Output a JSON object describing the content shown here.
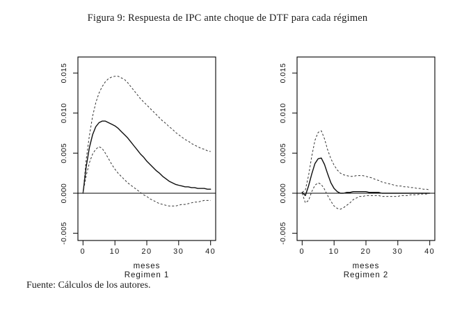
{
  "figure": {
    "caption": "Figura 9: Respuesta de IPC ante choque de DTF para cada régimen",
    "source_note": "Fuente: Cálculos de los autores."
  },
  "colors": {
    "background": "#ffffff",
    "line": "#0d0d0d",
    "band": "#333333",
    "text": "#1b1b1b"
  },
  "chart_data": [
    {
      "type": "line",
      "title": "",
      "xlabel": "meses",
      "sublabel": "Regimen 1",
      "ylabel": "",
      "grid": false,
      "legend": false,
      "zero_line": true,
      "x_ticks": [
        0,
        10,
        20,
        30,
        40
      ],
      "y_ticks": [
        -0.005,
        0.0,
        0.005,
        0.01,
        0.015
      ],
      "xlim": [
        -1.6,
        41.6
      ],
      "ylim": [
        -0.0059,
        0.017
      ],
      "series": [
        {
          "name": "response",
          "style": "solid",
          "points": [
            [
              0,
              0
            ],
            [
              1,
              0.0033
            ],
            [
              2,
              0.0057
            ],
            [
              3,
              0.0073
            ],
            [
              4,
              0.0083
            ],
            [
              5,
              0.0088
            ],
            [
              6,
              0.009
            ],
            [
              7,
              0.009
            ],
            [
              8,
              0.0088
            ],
            [
              9,
              0.0086
            ],
            [
              10,
              0.0084
            ],
            [
              11,
              0.0081
            ],
            [
              12,
              0.0077
            ],
            [
              13,
              0.0073
            ],
            [
              14,
              0.0069
            ],
            [
              15,
              0.0064
            ],
            [
              16,
              0.0059
            ],
            [
              17,
              0.0054
            ],
            [
              18,
              0.0049
            ],
            [
              19,
              0.0045
            ],
            [
              20,
              0.004
            ],
            [
              21,
              0.0036
            ],
            [
              22,
              0.0032
            ],
            [
              23,
              0.0028
            ],
            [
              24,
              0.0025
            ],
            [
              25,
              0.0021
            ],
            [
              26,
              0.0018
            ],
            [
              27,
              0.0015
            ],
            [
              28,
              0.0013
            ],
            [
              29,
              0.0011
            ],
            [
              30,
              0.001
            ],
            [
              31,
              0.0009
            ],
            [
              32,
              0.0008
            ],
            [
              33,
              0.0008
            ],
            [
              34,
              0.0007
            ],
            [
              35,
              0.0007
            ],
            [
              36,
              0.0006
            ],
            [
              37,
              0.0006
            ],
            [
              38,
              0.0006
            ],
            [
              39,
              0.0005
            ],
            [
              40,
              0.0005
            ]
          ]
        },
        {
          "name": "upper-band",
          "style": "dashed",
          "points": [
            [
              0,
              0
            ],
            [
              1,
              0.0042
            ],
            [
              2,
              0.0072
            ],
            [
              3,
              0.0096
            ],
            [
              4,
              0.0113
            ],
            [
              5,
              0.0125
            ],
            [
              6,
              0.0133
            ],
            [
              7,
              0.0139
            ],
            [
              8,
              0.0143
            ],
            [
              9,
              0.0145
            ],
            [
              10,
              0.0146
            ],
            [
              11,
              0.0146
            ],
            [
              12,
              0.0144
            ],
            [
              13,
              0.0142
            ],
            [
              14,
              0.0138
            ],
            [
              15,
              0.0133
            ],
            [
              16,
              0.0128
            ],
            [
              17,
              0.0123
            ],
            [
              18,
              0.0118
            ],
            [
              19,
              0.0114
            ],
            [
              20,
              0.011
            ],
            [
              21,
              0.0106
            ],
            [
              22,
              0.0102
            ],
            [
              23,
              0.0098
            ],
            [
              24,
              0.0094
            ],
            [
              25,
              0.009
            ],
            [
              26,
              0.0087
            ],
            [
              27,
              0.0083
            ],
            [
              28,
              0.008
            ],
            [
              29,
              0.0076
            ],
            [
              30,
              0.0073
            ],
            [
              31,
              0.007
            ],
            [
              32,
              0.0067
            ],
            [
              33,
              0.0065
            ],
            [
              34,
              0.0062
            ],
            [
              35,
              0.006
            ],
            [
              36,
              0.0058
            ],
            [
              37,
              0.0056
            ],
            [
              38,
              0.0055
            ],
            [
              39,
              0.0053
            ],
            [
              40,
              0.0052
            ]
          ]
        },
        {
          "name": "lower-band",
          "style": "dashed",
          "points": [
            [
              0,
              0
            ],
            [
              1,
              0.0022
            ],
            [
              2,
              0.0038
            ],
            [
              3,
              0.0049
            ],
            [
              4,
              0.0055
            ],
            [
              5,
              0.0058
            ],
            [
              6,
              0.0056
            ],
            [
              7,
              0.005
            ],
            [
              8,
              0.0043
            ],
            [
              9,
              0.0036
            ],
            [
              10,
              0.003
            ],
            [
              11,
              0.0025
            ],
            [
              12,
              0.0021
            ],
            [
              13,
              0.0017
            ],
            [
              14,
              0.0013
            ],
            [
              15,
              0.001
            ],
            [
              16,
              0.0007
            ],
            [
              17,
              0.0004
            ],
            [
              18,
              0.0001
            ],
            [
              19,
              -0.0002
            ],
            [
              20,
              -0.0004
            ],
            [
              21,
              -0.0007
            ],
            [
              22,
              -0.0009
            ],
            [
              23,
              -0.0011
            ],
            [
              24,
              -0.0013
            ],
            [
              25,
              -0.0014
            ],
            [
              26,
              -0.0015
            ],
            [
              27,
              -0.0016
            ],
            [
              28,
              -0.0016
            ],
            [
              29,
              -0.0016
            ],
            [
              30,
              -0.0015
            ],
            [
              31,
              -0.0014
            ],
            [
              32,
              -0.0014
            ],
            [
              33,
              -0.0013
            ],
            [
              34,
              -0.0012
            ],
            [
              35,
              -0.0011
            ],
            [
              36,
              -0.0011
            ],
            [
              37,
              -0.001
            ],
            [
              38,
              -0.0009
            ],
            [
              39,
              -0.0009
            ],
            [
              40,
              -0.0009
            ]
          ]
        }
      ]
    },
    {
      "type": "line",
      "title": "",
      "xlabel": "meses",
      "sublabel": "Regimen 2",
      "ylabel": "",
      "grid": false,
      "legend": false,
      "zero_line": true,
      "x_ticks": [
        0,
        10,
        20,
        30,
        40
      ],
      "y_ticks": [
        -0.005,
        0.0,
        0.005,
        0.01,
        0.015
      ],
      "xlim": [
        -1.6,
        41.6
      ],
      "ylim": [
        -0.0059,
        0.017
      ],
      "series": [
        {
          "name": "response",
          "style": "solid",
          "points": [
            [
              0,
              0.0001
            ],
            [
              1,
              -0.0003
            ],
            [
              2,
              0.0009
            ],
            [
              3,
              0.0024
            ],
            [
              4,
              0.0037
            ],
            [
              5,
              0.0043
            ],
            [
              6,
              0.0044
            ],
            [
              7,
              0.0036
            ],
            [
              8,
              0.0024
            ],
            [
              9,
              0.0013
            ],
            [
              10,
              0.0006
            ],
            [
              11,
              0.0002
            ],
            [
              12,
              0
            ],
            [
              13,
              0
            ],
            [
              14,
              0.0001
            ],
            [
              15,
              0.0001
            ],
            [
              16,
              0.0002
            ],
            [
              17,
              0.0002
            ],
            [
              18,
              0.0002
            ],
            [
              19,
              0.0002
            ],
            [
              20,
              0.0002
            ],
            [
              21,
              0.0001
            ],
            [
              22,
              0.0001
            ],
            [
              23,
              0.0001
            ],
            [
              24,
              0.0001
            ],
            [
              25,
              0
            ],
            [
              26,
              0
            ],
            [
              27,
              0
            ],
            [
              28,
              0
            ],
            [
              29,
              0
            ],
            [
              30,
              0
            ],
            [
              32,
              0
            ],
            [
              34,
              0
            ],
            [
              36,
              0
            ],
            [
              38,
              0
            ],
            [
              40,
              0
            ]
          ]
        },
        {
          "name": "upper-band",
          "style": "dashed",
          "points": [
            [
              0,
              0.0001
            ],
            [
              1,
              0.0004
            ],
            [
              2,
              0.0022
            ],
            [
              3,
              0.0046
            ],
            [
              4,
              0.0066
            ],
            [
              5,
              0.0076
            ],
            [
              6,
              0.0078
            ],
            [
              7,
              0.0068
            ],
            [
              8,
              0.0054
            ],
            [
              9,
              0.0043
            ],
            [
              10,
              0.0035
            ],
            [
              11,
              0.0029
            ],
            [
              12,
              0.0025
            ],
            [
              13,
              0.0023
            ],
            [
              14,
              0.0022
            ],
            [
              15,
              0.0021
            ],
            [
              16,
              0.0021
            ],
            [
              17,
              0.0022
            ],
            [
              18,
              0.0022
            ],
            [
              19,
              0.0022
            ],
            [
              20,
              0.0021
            ],
            [
              21,
              0.002
            ],
            [
              22,
              0.0019
            ],
            [
              23,
              0.0017
            ],
            [
              24,
              0.0016
            ],
            [
              25,
              0.0014
            ],
            [
              26,
              0.0013
            ],
            [
              27,
              0.0012
            ],
            [
              28,
              0.0011
            ],
            [
              29,
              0.001
            ],
            [
              30,
              0.0009
            ],
            [
              31,
              0.0009
            ],
            [
              32,
              0.0008
            ],
            [
              33,
              0.0008
            ],
            [
              34,
              0.0007
            ],
            [
              35,
              0.0007
            ],
            [
              36,
              0.0006
            ],
            [
              37,
              0.0006
            ],
            [
              38,
              0.0005
            ],
            [
              39,
              0.0005
            ],
            [
              40,
              0.0004
            ]
          ]
        },
        {
          "name": "lower-band",
          "style": "dashed",
          "points": [
            [
              0,
              0
            ],
            [
              1,
              -0.0012
            ],
            [
              2,
              -0.0009
            ],
            [
              3,
              0.0002
            ],
            [
              4,
              0.001
            ],
            [
              5,
              0.0013
            ],
            [
              6,
              0.0011
            ],
            [
              7,
              0.0005
            ],
            [
              8,
              -0.0003
            ],
            [
              9,
              -0.001
            ],
            [
              10,
              -0.0016
            ],
            [
              11,
              -0.0019
            ],
            [
              12,
              -0.002
            ],
            [
              13,
              -0.0018
            ],
            [
              14,
              -0.0015
            ],
            [
              15,
              -0.0012
            ],
            [
              16,
              -0.0008
            ],
            [
              17,
              -0.0006
            ],
            [
              18,
              -0.0004
            ],
            [
              19,
              -0.0004
            ],
            [
              20,
              -0.0003
            ],
            [
              21,
              -0.0003
            ],
            [
              22,
              -0.0003
            ],
            [
              23,
              -0.0003
            ],
            [
              24,
              -0.0003
            ],
            [
              25,
              -0.0004
            ],
            [
              26,
              -0.0004
            ],
            [
              27,
              -0.0004
            ],
            [
              28,
              -0.0004
            ],
            [
              29,
              -0.0004
            ],
            [
              30,
              -0.0004
            ],
            [
              31,
              -0.0003
            ],
            [
              32,
              -0.0003
            ],
            [
              33,
              -0.0003
            ],
            [
              34,
              -0.0002
            ],
            [
              35,
              -0.0002
            ],
            [
              36,
              -0.0002
            ],
            [
              37,
              -0.0001
            ],
            [
              38,
              -0.0001
            ],
            [
              39,
              -0.0001
            ],
            [
              40,
              0
            ]
          ]
        }
      ]
    }
  ]
}
